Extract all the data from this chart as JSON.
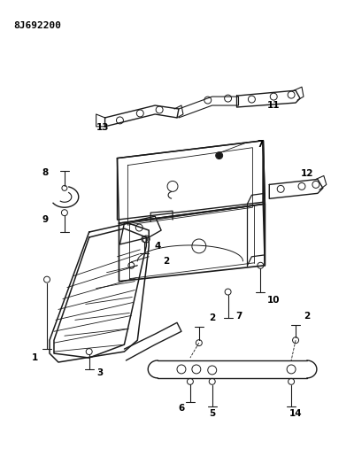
{
  "title": "8J692200",
  "bg_color": "#ffffff",
  "line_color": "#1a1a1a",
  "label_color": "#000000",
  "title_fontsize": 8,
  "label_fontsize": 7.5
}
